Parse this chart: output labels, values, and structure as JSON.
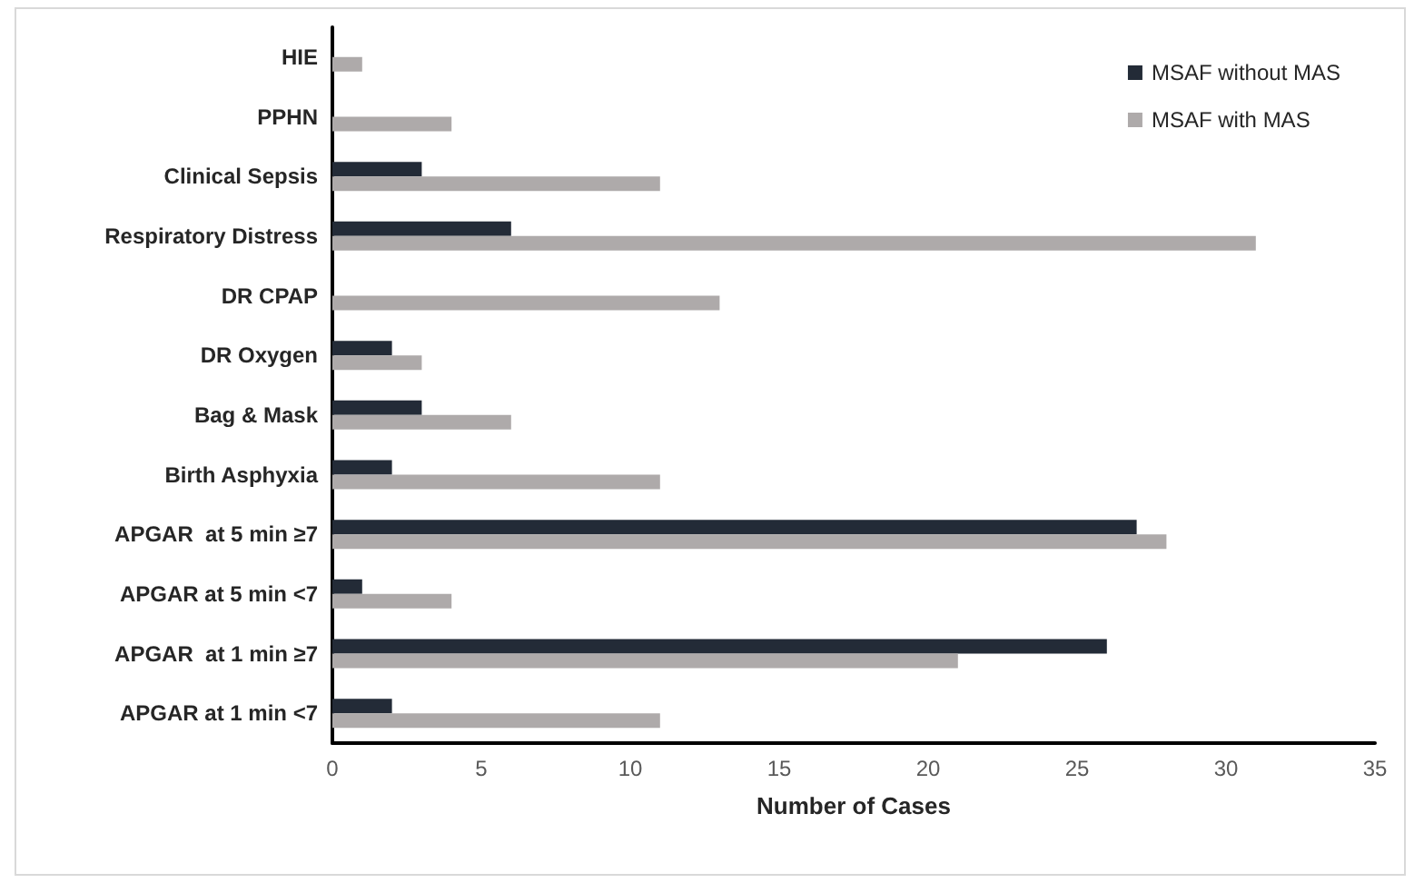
{
  "chart_data": {
    "type": "bar",
    "orientation": "horizontal",
    "xlabel": "Number of Cases",
    "categories": [
      "HIE",
      "PPHN",
      "Clinical Sepsis",
      "Respiratory Distress",
      "DR CPAP",
      "DR Oxygen",
      "Bag & Mask",
      "Birth Asphyxia",
      "APGAR  at 5 min ≥7",
      "APGAR at 5 min <7",
      "APGAR  at 1 min ≥7",
      "APGAR at 1 min <7"
    ],
    "series": [
      {
        "name": "MSAF without MAS",
        "color": "#232b37",
        "values": [
          null,
          null,
          3,
          6,
          null,
          2,
          3,
          2,
          27,
          1,
          26,
          2
        ]
      },
      {
        "name": "MSAF with MAS",
        "color": "#aeaaaa",
        "values": [
          1,
          4,
          11,
          31,
          13,
          3,
          6,
          11,
          28,
          4,
          21,
          11
        ]
      }
    ],
    "xlim": [
      0,
      35
    ],
    "xticks": [
      0,
      5,
      10,
      15,
      20,
      25,
      30,
      35
    ],
    "grid": false,
    "legend": "top right"
  }
}
